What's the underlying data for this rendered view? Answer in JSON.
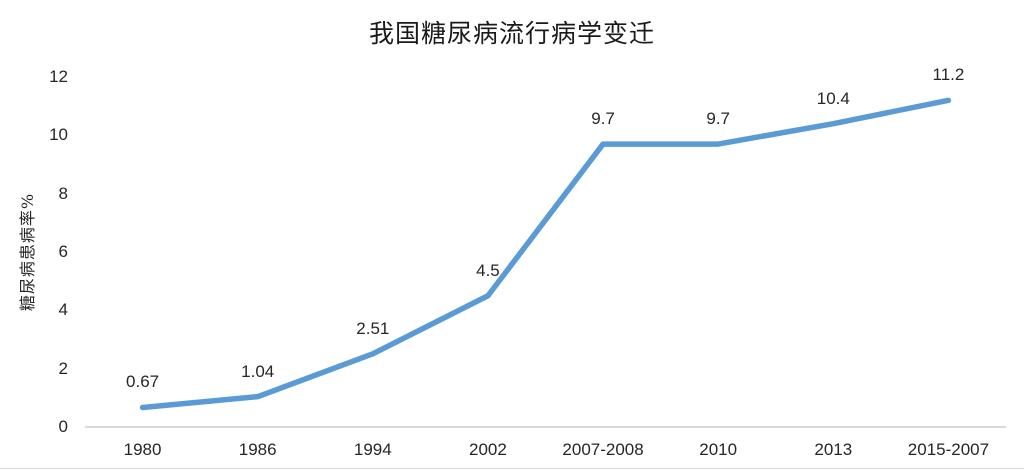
{
  "chart_data": {
    "type": "line",
    "title": "我国糖尿病流行病学变迁",
    "ylabel": "糖尿病患病率%",
    "xlabel": "",
    "categories": [
      "1980",
      "1986",
      "1994",
      "2002",
      "2007-2008",
      "2010",
      "2013",
      "2015-2007"
    ],
    "series": [
      {
        "name": "糖尿病患病率%",
        "values": [
          0.67,
          1.04,
          2.51,
          4.5,
          9.7,
          9.7,
          10.4,
          11.2
        ],
        "data_labels": [
          "0.67",
          "1.04",
          "2.51",
          "4.5",
          "9.7",
          "9.7",
          "10.4",
          "11.2"
        ]
      }
    ],
    "ylim": [
      0,
      12
    ],
    "yticks": [
      0,
      2,
      4,
      6,
      8,
      10,
      12
    ],
    "grid": false,
    "legend_position": "none",
    "colors": {
      "line": "#5B9BD5",
      "axis": "#D9D9D9",
      "text": "#262626",
      "title_text": "#1a1a1a",
      "background": "#ffffff"
    }
  }
}
